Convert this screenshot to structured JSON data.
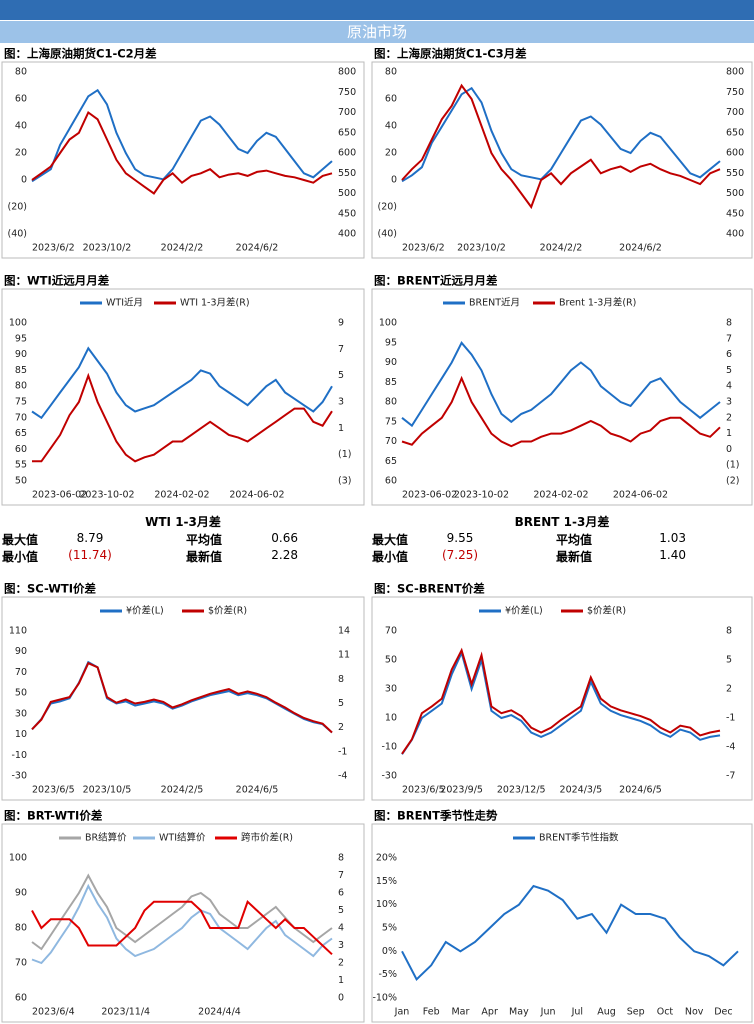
{
  "header": {
    "title": "原油市场"
  },
  "chart_data": [
    {
      "type": "line",
      "title": "图：上海原油期货C1-C2月差",
      "categories": [
        "2023/6/2",
        null,
        null,
        null,
        null,
        null,
        null,
        null,
        "2023/10/2",
        null,
        null,
        null,
        null,
        null,
        null,
        null,
        "2024/2/2",
        null,
        null,
        null,
        null,
        null,
        null,
        null,
        "2024/6/2",
        null,
        null,
        null,
        null,
        null,
        null,
        null,
        null
      ],
      "series": [
        {
          "color": "#1f6fc5",
          "axis": "y2",
          "values": [
            530,
            545,
            560,
            620,
            660,
            700,
            740,
            755,
            720,
            650,
            600,
            560,
            545,
            540,
            535,
            560,
            600,
            640,
            680,
            690,
            670,
            640,
            610,
            600,
            630,
            650,
            640,
            610,
            580,
            550,
            540,
            560,
            580
          ]
        },
        {
          "color": "#c00000",
          "values": [
            0,
            5,
            10,
            20,
            30,
            35,
            50,
            45,
            30,
            15,
            5,
            0,
            -5,
            -10,
            0,
            5,
            -2,
            3,
            5,
            8,
            2,
            4,
            5,
            3,
            6,
            7,
            5,
            3,
            2,
            0,
            -2,
            3,
            5
          ]
        }
      ],
      "ylim": [
        -40,
        80
      ],
      "yticks": [
        {
          "value": -40,
          "label": "(40)"
        },
        {
          "value": -20,
          "label": "(20)"
        },
        0,
        20,
        40,
        60,
        80
      ],
      "y2lim": [
        400,
        800
      ],
      "y2ticks": [
        400,
        450,
        500,
        550,
        600,
        650,
        700,
        750,
        800
      ]
    },
    {
      "type": "line",
      "title": "图：上海原油期货C1-C3月差",
      "categories": [
        "2023/6/2",
        null,
        null,
        null,
        null,
        null,
        null,
        null,
        "2023/10/2",
        null,
        null,
        null,
        null,
        null,
        null,
        null,
        "2024/2/2",
        null,
        null,
        null,
        null,
        null,
        null,
        null,
        "2024/6/2",
        null,
        null,
        null,
        null,
        null,
        null,
        null,
        null
      ],
      "series": [
        {
          "color": "#1f6fc5",
          "axis": "y2",
          "values": [
            530,
            545,
            565,
            625,
            665,
            705,
            745,
            760,
            725,
            655,
            600,
            560,
            545,
            540,
            535,
            560,
            600,
            640,
            680,
            690,
            670,
            640,
            610,
            600,
            630,
            650,
            640,
            610,
            580,
            550,
            540,
            560,
            580
          ]
        },
        {
          "color": "#c00000",
          "values": [
            0,
            8,
            15,
            30,
            45,
            55,
            70,
            60,
            40,
            20,
            8,
            0,
            -10,
            -20,
            0,
            5,
            -3,
            5,
            10,
            15,
            5,
            8,
            10,
            6,
            10,
            12,
            8,
            5,
            3,
            0,
            -3,
            5,
            8
          ]
        }
      ],
      "ylim": [
        -40,
        80
      ],
      "yticks": [
        {
          "value": -40,
          "label": "(40)"
        },
        {
          "value": -20,
          "label": "(20)"
        },
        0,
        20,
        40,
        60,
        80
      ],
      "y2lim": [
        400,
        800
      ],
      "y2ticks": [
        400,
        450,
        500,
        550,
        600,
        650,
        700,
        750,
        800
      ]
    },
    {
      "type": "line",
      "title": "图：WTI近远月月差",
      "legend": "top",
      "categories": [
        "2023-06-02",
        null,
        null,
        null,
        null,
        null,
        null,
        null,
        "2023-10-02",
        null,
        null,
        null,
        null,
        null,
        null,
        null,
        "2024-02-02",
        null,
        null,
        null,
        null,
        null,
        null,
        null,
        "2024-06-02",
        null,
        null,
        null,
        null,
        null,
        null,
        null,
        null
      ],
      "series": [
        {
          "name": "WTI近月",
          "color": "#1f6fc5",
          "values": [
            72,
            70,
            74,
            78,
            82,
            86,
            92,
            88,
            84,
            78,
            74,
            72,
            73,
            74,
            76,
            78,
            80,
            82,
            85,
            84,
            80,
            78,
            76,
            74,
            77,
            80,
            82,
            78,
            76,
            74,
            72,
            75,
            80
          ]
        },
        {
          "name": "WTI 1-3月差(R)",
          "color": "#c00000",
          "axis": "y2",
          "values": [
            -1.5,
            -1.5,
            -0.5,
            0.5,
            2,
            3,
            5,
            3,
            1.5,
            0,
            -1,
            -1.5,
            -1.2,
            -1,
            -0.5,
            0,
            0,
            0.5,
            1,
            1.5,
            1,
            0.5,
            0.3,
            0,
            0.5,
            1,
            1.5,
            2,
            2.5,
            2.5,
            1.5,
            1.2,
            2.3
          ]
        }
      ],
      "ylim": [
        50,
        100
      ],
      "yticks": [
        50,
        55,
        60,
        65,
        70,
        75,
        80,
        85,
        90,
        95,
        100
      ],
      "y2lim": [
        -3,
        9
      ],
      "y2ticks": [
        {
          "value": -3,
          "label": "(3)"
        },
        {
          "value": -1,
          "label": "(1)"
        },
        1,
        3,
        5,
        7,
        9
      ]
    },
    {
      "type": "line",
      "title": "图：BRENT近远月月差",
      "legend": "top",
      "categories": [
        "2023-06-02",
        null,
        null,
        null,
        null,
        null,
        null,
        null,
        "2023-10-02",
        null,
        null,
        null,
        null,
        null,
        null,
        null,
        "2024-02-02",
        null,
        null,
        null,
        null,
        null,
        null,
        null,
        "2024-06-02",
        null,
        null,
        null,
        null,
        null,
        null,
        null,
        null
      ],
      "series": [
        {
          "name": "BRENT近月",
          "color": "#1f6fc5",
          "values": [
            76,
            74,
            78,
            82,
            86,
            90,
            95,
            92,
            88,
            82,
            77,
            75,
            77,
            78,
            80,
            82,
            85,
            88,
            90,
            88,
            84,
            82,
            80,
            79,
            82,
            85,
            86,
            83,
            80,
            78,
            76,
            78,
            80
          ]
        },
        {
          "name": "Brent 1-3月差(R)",
          "color": "#c00000",
          "axis": "y2",
          "values": [
            0.5,
            0.3,
            1,
            1.5,
            2,
            3,
            4.5,
            3,
            2,
            1,
            0.5,
            0.2,
            0.5,
            0.5,
            0.8,
            1,
            1,
            1.2,
            1.5,
            1.8,
            1.5,
            1,
            0.8,
            0.5,
            1,
            1.2,
            1.8,
            2,
            2,
            1.5,
            1,
            0.8,
            1.4
          ]
        }
      ],
      "ylim": [
        60,
        100
      ],
      "yticks": [
        60,
        65,
        70,
        75,
        80,
        85,
        90,
        95,
        100
      ],
      "y2lim": [
        -2,
        8
      ],
      "y2ticks": [
        {
          "value": -2,
          "label": "(2)"
        },
        {
          "value": -1,
          "label": "(1)"
        },
        0,
        1,
        2,
        3,
        4,
        5,
        6,
        7,
        8
      ]
    },
    {
      "type": "line",
      "title": "图：SC-WTI价差",
      "legend": "top",
      "categories": [
        "2023/6/5",
        null,
        null,
        null,
        null,
        null,
        null,
        null,
        "2023/10/5",
        null,
        null,
        null,
        null,
        null,
        null,
        null,
        "2024/2/5",
        null,
        null,
        null,
        null,
        null,
        null,
        null,
        "2024/6/5",
        null,
        null,
        null,
        null,
        null,
        null,
        null,
        null
      ],
      "series": [
        {
          "name": "¥价差(L)",
          "color": "#1f6fc5",
          "values": [
            15,
            25,
            40,
            42,
            45,
            60,
            80,
            75,
            45,
            40,
            42,
            38,
            40,
            42,
            40,
            35,
            38,
            42,
            45,
            48,
            50,
            52,
            48,
            50,
            48,
            45,
            40,
            35,
            30,
            25,
            22,
            20,
            12
          ]
        },
        {
          "name": "$价差(R)",
          "color": "#c00000",
          "axis": "y2",
          "values": [
            1.8,
            3,
            5.2,
            5.5,
            5.8,
            7.5,
            10,
            9.5,
            5.8,
            5.1,
            5.5,
            5,
            5.2,
            5.5,
            5.2,
            4.5,
            4.9,
            5.4,
            5.8,
            6.2,
            6.5,
            6.8,
            6.2,
            6.5,
            6.2,
            5.8,
            5.1,
            4.5,
            3.8,
            3.2,
            2.8,
            2.5,
            1.4
          ]
        }
      ],
      "ylim": [
        -30,
        110
      ],
      "yticks": [
        -30,
        -10,
        10,
        30,
        50,
        70,
        90,
        110
      ],
      "y2lim": [
        -4,
        14
      ],
      "y2ticks": [
        -4,
        -1,
        2,
        5,
        8,
        11,
        14
      ]
    },
    {
      "type": "line",
      "title": "图：SC-BRENT价差",
      "legend": "top",
      "categories": [
        "2023/6/5",
        null,
        null,
        null,
        null,
        null,
        "2023/9/5",
        null,
        null,
        null,
        null,
        null,
        "2023/12/5",
        null,
        null,
        null,
        null,
        null,
        "2024/3/5",
        null,
        null,
        null,
        null,
        null,
        "2024/6/5",
        null,
        null,
        null,
        null,
        null,
        null,
        null,
        null
      ],
      "series": [
        {
          "name": "¥价差(L)",
          "color": "#1f6fc5",
          "values": [
            -15,
            -5,
            10,
            15,
            20,
            40,
            55,
            30,
            50,
            15,
            10,
            12,
            8,
            0,
            -3,
            0,
            5,
            10,
            15,
            35,
            20,
            15,
            12,
            10,
            8,
            5,
            0,
            -3,
            2,
            0,
            -5,
            -3,
            -2
          ]
        },
        {
          "name": "$价差(R)",
          "color": "#c00000",
          "axis": "y2",
          "values": [
            -4.7,
            -3.2,
            -0.5,
            0.2,
            1,
            4,
            6,
            2.5,
            5.5,
            0.2,
            -0.5,
            -0.2,
            -0.8,
            -2,
            -2.5,
            -2,
            -1.2,
            -0.5,
            0.2,
            3.2,
            1,
            0.2,
            -0.2,
            -0.5,
            -0.8,
            -1.2,
            -2,
            -2.5,
            -1.8,
            -2,
            -2.8,
            -2.5,
            -2.3
          ]
        }
      ],
      "ylim": [
        -30,
        70
      ],
      "yticks": [
        -30,
        -10,
        10,
        30,
        50,
        70
      ],
      "y2lim": [
        -7,
        8
      ],
      "y2ticks": [
        -7,
        -4,
        -1,
        2,
        5,
        8
      ]
    },
    {
      "type": "line",
      "title": "图：BRT-WTI价差",
      "legend": "top",
      "categories": [
        "2023/6/4",
        null,
        null,
        null,
        null,
        null,
        null,
        null,
        null,
        null,
        "2023/11/4",
        null,
        null,
        null,
        null,
        null,
        null,
        null,
        null,
        null,
        "2024/4/4",
        null,
        null,
        null,
        null,
        null,
        null,
        null,
        null,
        null,
        null,
        null,
        null
      ],
      "series": [
        {
          "name": "BR结算价",
          "color": "#a6a6a6",
          "values": [
            76,
            74,
            78,
            82,
            86,
            90,
            95,
            90,
            86,
            80,
            78,
            76,
            78,
            80,
            82,
            84,
            86,
            89,
            90,
            88,
            84,
            82,
            80,
            80,
            82,
            84,
            86,
            83,
            80,
            78,
            76,
            78,
            80
          ]
        },
        {
          "name": "WTI结算价",
          "color": "#8fb8e0",
          "values": [
            71,
            70,
            73,
            77,
            81,
            86,
            92,
            87,
            83,
            77,
            74,
            72,
            73,
            74,
            76,
            78,
            80,
            83,
            85,
            84,
            80,
            78,
            76,
            74,
            77,
            80,
            82,
            78,
            76,
            74,
            72,
            75,
            77
          ]
        },
        {
          "name": "跨市价差(R)",
          "color": "#e00000",
          "axis": "y2",
          "values": [
            5,
            4,
            4.5,
            4.5,
            4.5,
            4,
            3,
            3,
            3,
            3,
            3.5,
            4,
            5,
            5.5,
            5.5,
            5.5,
            5.5,
            5.5,
            5,
            4,
            4,
            4,
            4,
            5.5,
            5,
            4.5,
            4,
            4.5,
            4,
            4,
            3.5,
            3,
            2.5
          ]
        }
      ],
      "ylim": [
        60,
        100
      ],
      "yticks": [
        60,
        70,
        80,
        90,
        100
      ],
      "y2lim": [
        0,
        8
      ],
      "y2ticks": [
        0,
        1,
        2,
        3,
        4,
        5,
        6,
        7,
        8
      ]
    },
    {
      "type": "line",
      "title": "图：BRENT季节性走势",
      "legend": "top",
      "categories": [
        "Jan",
        null,
        "Feb",
        null,
        "Mar",
        null,
        "Apr",
        null,
        "May",
        null,
        "Jun",
        null,
        "Jul",
        null,
        "Aug",
        null,
        "Sep",
        null,
        "Oct",
        null,
        "Nov",
        null,
        "Dec",
        null
      ],
      "series": [
        {
          "name": "BRENT季节性指数",
          "color": "#1f6fc5",
          "values": [
            0,
            -6,
            -3,
            2,
            0,
            2,
            5,
            8,
            10,
            14,
            13,
            11,
            7,
            8,
            4,
            10,
            8,
            8,
            7,
            3,
            0,
            -1,
            -3,
            0
          ]
        }
      ],
      "ylim": [
        -10,
        20
      ],
      "yticks": [
        {
          "value": -10,
          "label": "-10%"
        },
        {
          "value": -5,
          "label": "-5%"
        },
        {
          "value": 0,
          "label": "0%"
        },
        {
          "value": 5,
          "label": "5%"
        },
        {
          "value": 10,
          "label": "10%"
        },
        {
          "value": 15,
          "label": "15%"
        },
        {
          "value": 20,
          "label": "20%"
        }
      ]
    }
  ],
  "stats": [
    {
      "title": "WTI 1-3月差",
      "rows": [
        [
          "最大值",
          "8.79",
          "平均值",
          "0.66"
        ],
        [
          "最小值",
          "(11.74)",
          "最新值",
          "2.28"
        ]
      ]
    },
    {
      "title": "BRENT 1-3月差",
      "rows": [
        [
          "最大值",
          "9.55",
          "平均值",
          "1.03"
        ],
        [
          "最小值",
          "(7.25)",
          "最新值",
          "1.40"
        ]
      ]
    }
  ]
}
